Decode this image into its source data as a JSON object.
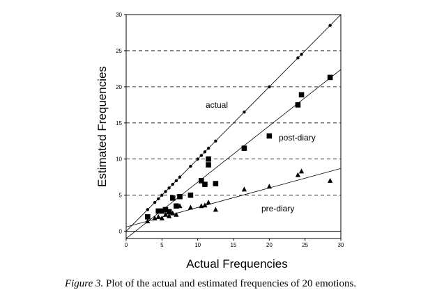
{
  "caption": {
    "lead": "Figure 3.",
    "text": " Plot of the actual and estimated frequencies of 20 emotions."
  },
  "chart_data": {
    "type": "scatter",
    "xlabel": "Actual Frequencies",
    "ylabel": "Estimated Frequencies",
    "xlim": [
      0,
      30
    ],
    "ylim": [
      -1,
      30
    ],
    "x_ticks": [
      0,
      5,
      10,
      15,
      20,
      25,
      30
    ],
    "y_ticks": [
      0,
      5,
      10,
      15,
      20,
      25,
      30
    ],
    "gridlines_y": [
      5,
      10,
      15,
      20,
      25
    ],
    "grid_style": "dashed horizontal",
    "series": [
      {
        "name": "actual",
        "marker": "circle",
        "fit": {
          "intercept": 0,
          "slope": 1
        },
        "points": [
          [
            3,
            3
          ],
          [
            4,
            4
          ],
          [
            4.5,
            4.5
          ],
          [
            5,
            5
          ],
          [
            5.5,
            5.5
          ],
          [
            6,
            6
          ],
          [
            6.5,
            6.5
          ],
          [
            7,
            7
          ],
          [
            7.5,
            7.5
          ],
          [
            9,
            9
          ],
          [
            10,
            10
          ],
          [
            10.5,
            10.5
          ],
          [
            11,
            11
          ],
          [
            11.5,
            11.5
          ],
          [
            12.5,
            12.5
          ],
          [
            16.5,
            16.5
          ],
          [
            20,
            20
          ],
          [
            24,
            24
          ],
          [
            24.5,
            24.5
          ],
          [
            28.5,
            28.5
          ]
        ]
      },
      {
        "name": "post-diary",
        "marker": "square",
        "fit": {
          "intercept": -1,
          "slope": 0.78
        },
        "points": [
          [
            3,
            2
          ],
          [
            4.5,
            2.8
          ],
          [
            5,
            2.8
          ],
          [
            5.5,
            3
          ],
          [
            6,
            2.7
          ],
          [
            6.5,
            4.6
          ],
          [
            7,
            3.5
          ],
          [
            7.5,
            4.8
          ],
          [
            9,
            5
          ],
          [
            10.5,
            7
          ],
          [
            11,
            6.5
          ],
          [
            11.5,
            10
          ],
          [
            11.5,
            9.2
          ],
          [
            12.5,
            6.6
          ],
          [
            16.5,
            11.5
          ],
          [
            20,
            13.2
          ],
          [
            24,
            17.5
          ],
          [
            24.5,
            18.9
          ],
          [
            28.5,
            21.3
          ]
        ]
      },
      {
        "name": "pre-diary",
        "marker": "triangle",
        "fit": {
          "intercept": 0.6,
          "slope": 0.27
        },
        "points": [
          [
            3,
            1.4
          ],
          [
            4,
            1.8
          ],
          [
            4.5,
            2
          ],
          [
            5,
            1.8
          ],
          [
            5.5,
            2.3
          ],
          [
            6,
            2.1
          ],
          [
            6.5,
            2.5
          ],
          [
            7,
            2.3
          ],
          [
            7.5,
            3.5
          ],
          [
            9,
            3.3
          ],
          [
            10.5,
            3.5
          ],
          [
            11,
            3.6
          ],
          [
            11.5,
            4
          ],
          [
            12.5,
            3
          ],
          [
            16.5,
            5.8
          ],
          [
            20,
            6.2
          ],
          [
            24,
            7.8
          ],
          [
            24.5,
            8.3
          ],
          [
            28.5,
            7
          ]
        ]
      }
    ]
  }
}
